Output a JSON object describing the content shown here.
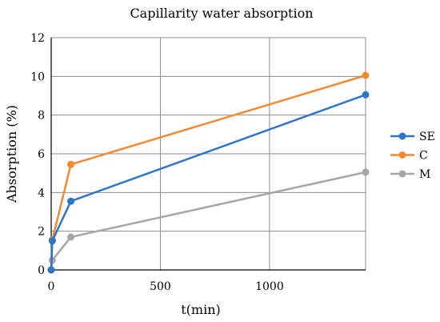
{
  "chart_data": {
    "type": "line",
    "title": "Capillarity water absorption",
    "xlabel": "t(min)",
    "ylabel": "Absorption (%)",
    "xlim": [
      0,
      1440
    ],
    "ylim": [
      0,
      12
    ],
    "xticks": [
      0,
      500,
      1000
    ],
    "yticks": [
      0,
      2,
      4,
      6,
      8,
      10,
      12
    ],
    "grid": true,
    "legend": "right",
    "series": [
      {
        "name": "SE",
        "color": "#2E75C9",
        "points": [
          [
            0,
            0
          ],
          [
            5,
            1.5
          ],
          [
            90,
            3.55
          ],
          [
            1440,
            9.05
          ]
        ]
      },
      {
        "name": "C",
        "color": "#F28A32",
        "points": [
          [
            0,
            0
          ],
          [
            5,
            1.55
          ],
          [
            90,
            5.45
          ],
          [
            1440,
            10.05
          ]
        ]
      },
      {
        "name": "M",
        "color": "#A6A6A6",
        "points": [
          [
            0,
            0
          ],
          [
            5,
            0.5
          ],
          [
            90,
            1.7
          ],
          [
            1440,
            5.05
          ]
        ]
      }
    ]
  }
}
